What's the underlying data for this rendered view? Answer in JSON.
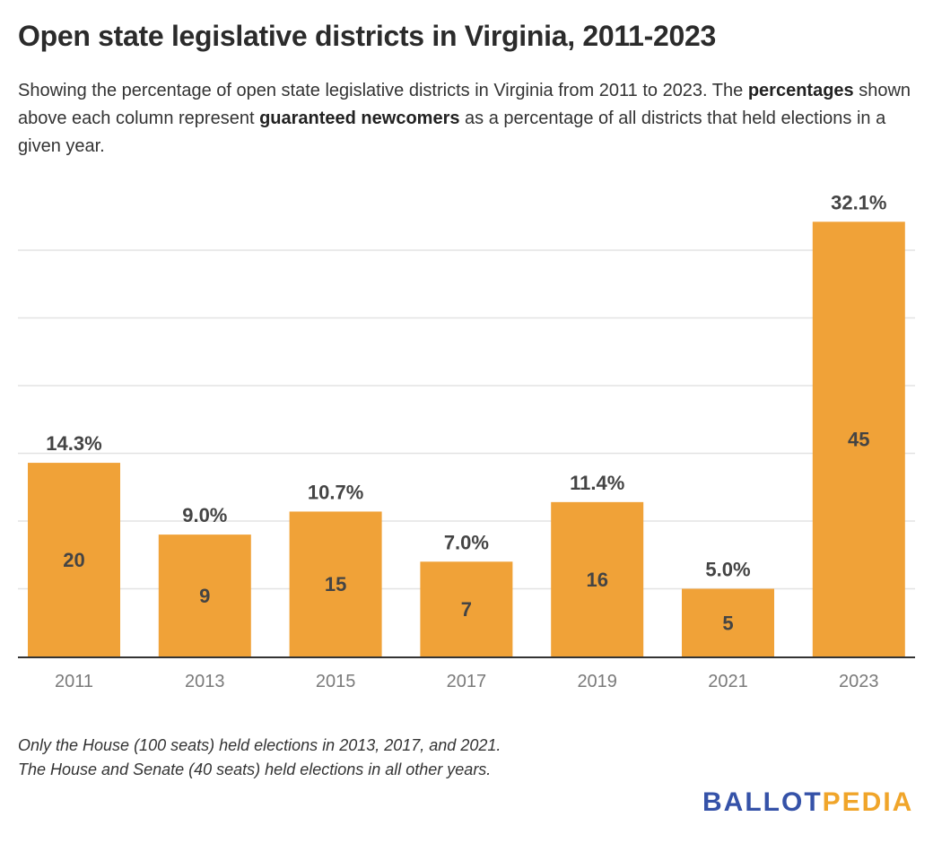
{
  "title": "Open state legislative districts in Virginia, 2011-2023",
  "subtitle": {
    "part1": "Showing the percentage of open state legislative districts in Virginia from 2011 to 2023. The ",
    "bold1": "percentages",
    "part2": " shown above each column represent ",
    "bold2": "guaranteed newcomers",
    "part3": " as a percentage of all districts that held elections in a given year."
  },
  "notes": [
    "Only the House (100 seats) held elections in 2013, 2017, and 2021.",
    "The House and Senate (40 seats) held elections in all other years."
  ],
  "logo": {
    "part1": "BALLOT",
    "part2": "PEDIA"
  },
  "chart_data": {
    "type": "bar",
    "categories": [
      "2011",
      "2013",
      "2015",
      "2017",
      "2019",
      "2021",
      "2023"
    ],
    "values": [
      14.3,
      9.0,
      10.7,
      7.0,
      11.4,
      5.0,
      32.1
    ],
    "percent_labels": [
      "14.3%",
      "9.0%",
      "10.7%",
      "7.0%",
      "11.4%",
      "5.0%",
      "32.1%"
    ],
    "count_labels": [
      "20",
      "9",
      "15",
      "7",
      "16",
      "5",
      "45"
    ],
    "ylim": [
      0,
      32.1
    ],
    "grid": true,
    "grid_step": 5,
    "bar_color": "#f0a238",
    "label_color": "#444444",
    "axis_label_color": "#7a7a7a"
  }
}
